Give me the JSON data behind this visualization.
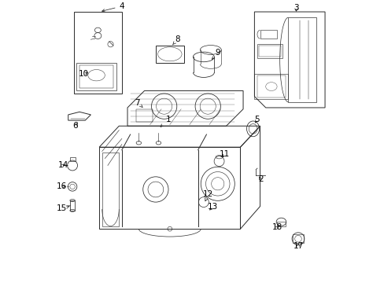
{
  "background_color": "#ffffff",
  "line_color": "#2a2a2a",
  "label_color": "#000000",
  "figsize": [
    4.89,
    3.6
  ],
  "dpi": 100,
  "label_fs": 7.5,
  "lw": 0.7
}
